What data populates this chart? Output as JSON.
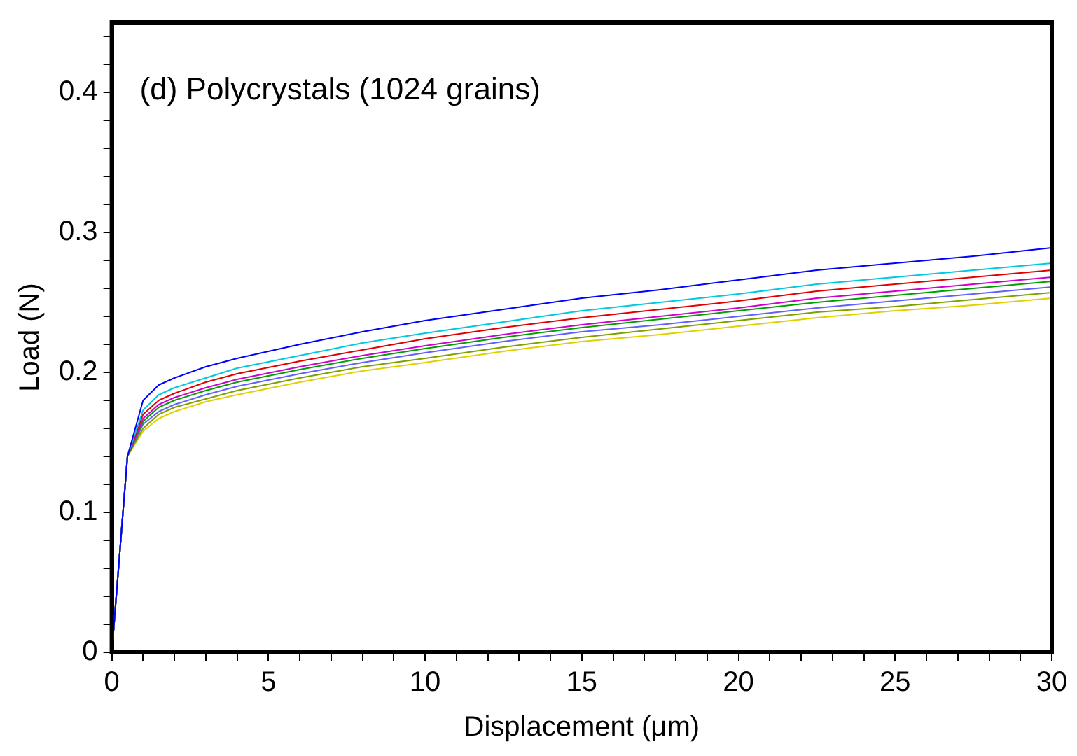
{
  "chart_data": {
    "type": "line",
    "xlabel": "Displacement (μm)",
    "ylabel": "Load (N)",
    "annotations": [
      "(d) Polycrystals (1024 grains)"
    ],
    "x": [
      0,
      0.5,
      1,
      1.5,
      2,
      3,
      4,
      6,
      8,
      10,
      12.5,
      15,
      17.5,
      20,
      22.5,
      25,
      27.5,
      30
    ],
    "series": [
      {
        "color": "#0000ff",
        "values": [
          0,
          0.14,
          0.18,
          0.191,
          0.196,
          0.204,
          0.21,
          0.22,
          0.229,
          0.237,
          0.245,
          0.253,
          0.259,
          0.266,
          0.273,
          0.278,
          0.283,
          0.289
        ]
      },
      {
        "color": "#00c8e0",
        "values": [
          0,
          0.14,
          0.173,
          0.184,
          0.189,
          0.196,
          0.203,
          0.212,
          0.221,
          0.228,
          0.236,
          0.244,
          0.25,
          0.256,
          0.263,
          0.268,
          0.273,
          0.278
        ]
      },
      {
        "color": "#e00000",
        "values": [
          0,
          0.14,
          0.17,
          0.18,
          0.185,
          0.193,
          0.199,
          0.208,
          0.216,
          0.224,
          0.232,
          0.239,
          0.245,
          0.251,
          0.258,
          0.263,
          0.268,
          0.273
        ]
      },
      {
        "color": "#d000d0",
        "values": [
          0,
          0.14,
          0.167,
          0.177,
          0.182,
          0.189,
          0.195,
          0.204,
          0.212,
          0.219,
          0.227,
          0.234,
          0.24,
          0.246,
          0.253,
          0.258,
          0.263,
          0.268
        ]
      },
      {
        "color": "#00a000",
        "values": [
          0,
          0.14,
          0.165,
          0.175,
          0.18,
          0.187,
          0.193,
          0.202,
          0.21,
          0.217,
          0.225,
          0.232,
          0.238,
          0.244,
          0.25,
          0.255,
          0.26,
          0.265
        ]
      },
      {
        "color": "#6060ff",
        "values": [
          0,
          0.14,
          0.163,
          0.172,
          0.177,
          0.184,
          0.19,
          0.199,
          0.207,
          0.214,
          0.222,
          0.229,
          0.234,
          0.24,
          0.246,
          0.251,
          0.256,
          0.261
        ]
      },
      {
        "color": "#80a000",
        "values": [
          0,
          0.14,
          0.16,
          0.17,
          0.175,
          0.181,
          0.187,
          0.196,
          0.204,
          0.21,
          0.218,
          0.225,
          0.231,
          0.237,
          0.243,
          0.247,
          0.252,
          0.257
        ]
      },
      {
        "color": "#e0d000",
        "values": [
          0,
          0.14,
          0.158,
          0.167,
          0.172,
          0.179,
          0.184,
          0.193,
          0.201,
          0.207,
          0.215,
          0.222,
          0.227,
          0.233,
          0.239,
          0.244,
          0.248,
          0.253
        ]
      }
    ],
    "xlim": [
      0,
      30
    ],
    "xticks": [
      0,
      {
        "value": 1,
        "label": null
      },
      {
        "value": 2,
        "label": null
      },
      {
        "value": 3,
        "label": null
      },
      {
        "value": 4,
        "label": null
      },
      5,
      {
        "value": 6,
        "label": null
      },
      {
        "value": 7,
        "label": null
      },
      {
        "value": 8,
        "label": null
      },
      {
        "value": 9,
        "label": null
      },
      10,
      {
        "value": 11,
        "label": null
      },
      {
        "value": 12,
        "label": null
      },
      {
        "value": 13,
        "label": null
      },
      {
        "value": 14,
        "label": null
      },
      15,
      {
        "value": 16,
        "label": null
      },
      {
        "value": 17,
        "label": null
      },
      {
        "value": 18,
        "label": null
      },
      {
        "value": 19,
        "label": null
      },
      20,
      {
        "value": 21,
        "label": null
      },
      {
        "value": 22,
        "label": null
      },
      {
        "value": 23,
        "label": null
      },
      {
        "value": 24,
        "label": null
      },
      25,
      {
        "value": 26,
        "label": null
      },
      {
        "value": 27,
        "label": null
      },
      {
        "value": 28,
        "label": null
      },
      {
        "value": 29,
        "label": null
      },
      30
    ],
    "ylim": [
      0,
      0.45
    ],
    "yticks": [
      0,
      {
        "value": 0.02,
        "label": null
      },
      {
        "value": 0.04,
        "label": null
      },
      {
        "value": 0.06,
        "label": null
      },
      {
        "value": 0.08,
        "label": null
      },
      0.1,
      {
        "value": 0.12,
        "label": null
      },
      {
        "value": 0.14,
        "label": null
      },
      {
        "value": 0.16,
        "label": null
      },
      {
        "value": 0.18,
        "label": null
      },
      0.2,
      {
        "value": 0.22,
        "label": null
      },
      {
        "value": 0.24,
        "label": null
      },
      {
        "value": 0.26,
        "label": null
      },
      {
        "value": 0.28,
        "label": null
      },
      0.3,
      {
        "value": 0.32,
        "label": null
      },
      {
        "value": 0.34,
        "label": null
      },
      {
        "value": 0.36,
        "label": null
      },
      {
        "value": 0.38,
        "label": null
      },
      0.4,
      {
        "value": 0.42,
        "label": null
      },
      {
        "value": 0.44,
        "label": null
      }
    ],
    "grid": false,
    "legend": false,
    "marker": "none",
    "line_style": "solid"
  }
}
